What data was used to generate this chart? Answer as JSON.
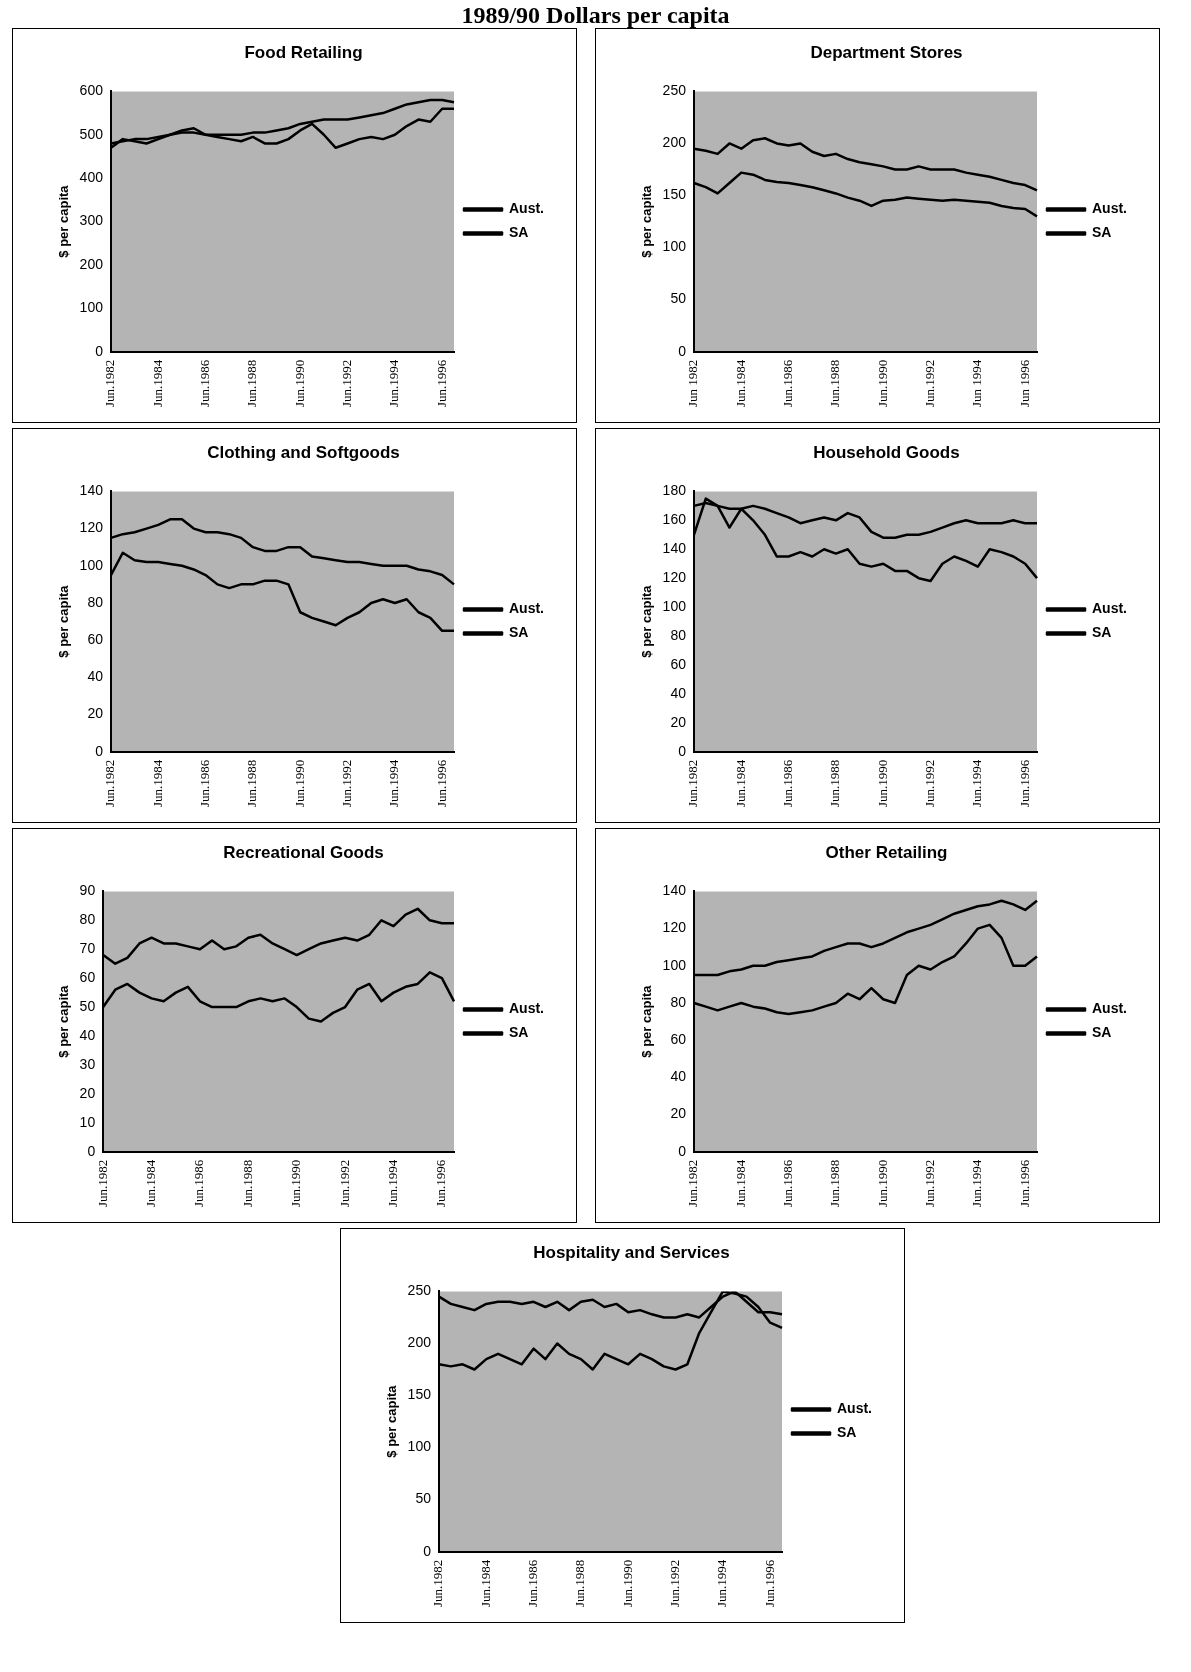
{
  "chart_data": [
    {
      "type": "other",
      "title": "1989/90 Dollars per capita"
    },
    {
      "type": "line",
      "title": "Food Retailing",
      "ylabel": "$ per capita",
      "legend": "right",
      "ylim": [
        0,
        600
      ],
      "yticks": [
        0,
        100,
        200,
        300,
        400,
        500,
        600
      ],
      "categories": [
        "Jun.1982",
        null,
        null,
        null,
        "Jun.1984",
        null,
        null,
        null,
        "Jun.1986",
        null,
        null,
        null,
        "Jun.1988",
        null,
        null,
        null,
        "Jun.1990",
        null,
        null,
        null,
        "Jun.1992",
        null,
        null,
        null,
        "Jun.1994",
        null,
        null,
        null,
        "Jun.1996",
        null
      ],
      "series": [
        {
          "name": "Aust.",
          "color": "#000000",
          "values": [
            480,
            485,
            490,
            490,
            495,
            500,
            505,
            505,
            500,
            500,
            500,
            500,
            505,
            505,
            510,
            515,
            525,
            530,
            535,
            535,
            535,
            540,
            545,
            550,
            560,
            570,
            575,
            580,
            580,
            575
          ]
        },
        {
          "name": "SA",
          "color": "#000000",
          "values": [
            470,
            490,
            485,
            480,
            490,
            500,
            510,
            515,
            500,
            495,
            490,
            485,
            495,
            480,
            480,
            490,
            510,
            525,
            500,
            470,
            480,
            490,
            495,
            490,
            500,
            520,
            535,
            530,
            560,
            560
          ]
        }
      ]
    },
    {
      "type": "line",
      "title": "Department Stores",
      "ylabel": "$ per capita",
      "legend": "right",
      "ylim": [
        0,
        250
      ],
      "yticks": [
        0,
        50,
        100,
        150,
        200,
        250
      ],
      "categories": [
        "Jun 1982",
        null,
        null,
        null,
        "Jun.1984",
        null,
        null,
        null,
        "Jun.1986",
        null,
        null,
        null,
        "Jun.1988",
        null,
        null,
        null,
        "Jun.1990",
        null,
        null,
        null,
        "Jun.1992",
        null,
        null,
        null,
        "Jun 1994",
        null,
        null,
        null,
        "Jun 1996",
        null
      ],
      "series": [
        {
          "name": "Aust.",
          "color": "#000000",
          "values": [
            195,
            193,
            190,
            200,
            195,
            203,
            205,
            200,
            198,
            200,
            192,
            188,
            190,
            185,
            182,
            180,
            178,
            175,
            175,
            178,
            175,
            175,
            175,
            172,
            170,
            168,
            165,
            162,
            160,
            155
          ]
        },
        {
          "name": "SA",
          "color": "#000000",
          "values": [
            162,
            158,
            152,
            162,
            172,
            170,
            165,
            163,
            162,
            160,
            158,
            155,
            152,
            148,
            145,
            140,
            145,
            146,
            148,
            147,
            146,
            145,
            146,
            145,
            144,
            143,
            140,
            138,
            137,
            130
          ]
        }
      ]
    },
    {
      "type": "line",
      "title": "Clothing and Softgoods",
      "ylabel": "$ per capita",
      "legend": "right",
      "ylim": [
        0,
        140
      ],
      "yticks": [
        0,
        20,
        40,
        60,
        80,
        100,
        120,
        140
      ],
      "categories": [
        "Jun.1982",
        null,
        null,
        null,
        "Jun.1984",
        null,
        null,
        null,
        "Jun.1986",
        null,
        null,
        null,
        "Jun.1988",
        null,
        null,
        null,
        "Jun.1990",
        null,
        null,
        null,
        "Jun.1992",
        null,
        null,
        null,
        "Jun.1994",
        null,
        null,
        null,
        "Jun.1996",
        null
      ],
      "series": [
        {
          "name": "Aust.",
          "color": "#000000",
          "values": [
            115,
            117,
            118,
            120,
            122,
            125,
            125,
            120,
            118,
            118,
            117,
            115,
            110,
            108,
            108,
            110,
            110,
            105,
            104,
            103,
            102,
            102,
            101,
            100,
            100,
            100,
            98,
            97,
            95,
            90
          ]
        },
        {
          "name": "SA",
          "color": "#000000",
          "values": [
            95,
            107,
            103,
            102,
            102,
            101,
            100,
            98,
            95,
            90,
            88,
            90,
            90,
            92,
            92,
            90,
            75,
            72,
            70,
            68,
            72,
            75,
            80,
            82,
            80,
            82,
            75,
            72,
            65,
            65
          ]
        }
      ]
    },
    {
      "type": "line",
      "title": "Household Goods",
      "ylabel": "$ per capita",
      "legend": "right",
      "ylim": [
        0,
        180
      ],
      "yticks": [
        0,
        20,
        40,
        60,
        80,
        100,
        120,
        140,
        160,
        180
      ],
      "categories": [
        "Jun.1982",
        null,
        null,
        null,
        "Jun.1984",
        null,
        null,
        null,
        "Jun.1986",
        null,
        null,
        null,
        "Jun.1988",
        null,
        null,
        null,
        "Jun.1990",
        null,
        null,
        null,
        "Jun.1992",
        null,
        null,
        null,
        "Jun.1994",
        null,
        null,
        null,
        "Jun.1996",
        null
      ],
      "series": [
        {
          "name": "Aust.",
          "color": "#000000",
          "values": [
            170,
            172,
            170,
            168,
            168,
            170,
            168,
            165,
            162,
            158,
            160,
            162,
            160,
            165,
            162,
            152,
            148,
            148,
            150,
            150,
            152,
            155,
            158,
            160,
            158,
            158,
            158,
            160,
            158,
            158
          ]
        },
        {
          "name": "SA",
          "color": "#000000",
          "values": [
            150,
            175,
            170,
            155,
            168,
            160,
            150,
            135,
            135,
            138,
            135,
            140,
            137,
            140,
            130,
            128,
            130,
            125,
            125,
            120,
            118,
            130,
            135,
            132,
            128,
            140,
            138,
            135,
            130,
            120
          ]
        }
      ]
    },
    {
      "type": "line",
      "title": "Recreational Goods",
      "ylabel": "$ per capita",
      "legend": "right",
      "ylim": [
        0,
        90
      ],
      "yticks": [
        0,
        10,
        20,
        30,
        40,
        50,
        60,
        70,
        80,
        90
      ],
      "categories": [
        "Jun.1982",
        null,
        null,
        null,
        "Jun.1984",
        null,
        null,
        null,
        "Jun.1986",
        null,
        null,
        null,
        "Jun.1988",
        null,
        null,
        null,
        "Jun.1990",
        null,
        null,
        null,
        "Jun.1992",
        null,
        null,
        null,
        "Jun.1994",
        null,
        null,
        null,
        "Jun.1996",
        null
      ],
      "series": [
        {
          "name": "Aust.",
          "color": "#000000",
          "values": [
            68,
            65,
            67,
            72,
            74,
            72,
            72,
            71,
            70,
            73,
            70,
            71,
            74,
            75,
            72,
            70,
            68,
            70,
            72,
            73,
            74,
            73,
            75,
            80,
            78,
            82,
            84,
            80,
            79,
            79
          ]
        },
        {
          "name": "SA",
          "color": "#000000",
          "values": [
            50,
            56,
            58,
            55,
            53,
            52,
            55,
            57,
            52,
            50,
            50,
            50,
            52,
            53,
            52,
            53,
            50,
            46,
            45,
            48,
            50,
            56,
            58,
            52,
            55,
            57,
            58,
            62,
            60,
            52
          ]
        }
      ]
    },
    {
      "type": "line",
      "title": "Other Retailing",
      "ylabel": "$ per capita",
      "legend": "right",
      "ylim": [
        0,
        140
      ],
      "yticks": [
        0,
        20,
        40,
        60,
        80,
        100,
        120,
        140
      ],
      "categories": [
        "Jun.1982",
        null,
        null,
        null,
        "Jun.1984",
        null,
        null,
        null,
        "Jun.1986",
        null,
        null,
        null,
        "Jun.1988",
        null,
        null,
        null,
        "Jun.1990",
        null,
        null,
        null,
        "Jun.1992",
        null,
        null,
        null,
        "Jun.1994",
        null,
        null,
        null,
        "Jun.1996",
        null
      ],
      "series": [
        {
          "name": "Aust.",
          "color": "#000000",
          "values": [
            95,
            95,
            95,
            97,
            98,
            100,
            100,
            102,
            103,
            104,
            105,
            108,
            110,
            112,
            112,
            110,
            112,
            115,
            118,
            120,
            122,
            125,
            128,
            130,
            132,
            133,
            135,
            133,
            130,
            135
          ]
        },
        {
          "name": "SA",
          "color": "#000000",
          "values": [
            80,
            78,
            76,
            78,
            80,
            78,
            77,
            75,
            74,
            75,
            76,
            78,
            80,
            85,
            82,
            88,
            82,
            80,
            95,
            100,
            98,
            102,
            105,
            112,
            120,
            122,
            115,
            100,
            100,
            105
          ]
        }
      ]
    },
    {
      "type": "line",
      "title": "Hospitality and Services",
      "ylabel": "$ per capita",
      "legend": "right",
      "ylim": [
        0,
        250
      ],
      "yticks": [
        0,
        50,
        100,
        150,
        200,
        250
      ],
      "categories": [
        "Jun.1982",
        null,
        null,
        null,
        "Jun.1984",
        null,
        null,
        null,
        "Jun.1986",
        null,
        null,
        null,
        "Jun.1988",
        null,
        null,
        null,
        "Jun.1990",
        null,
        null,
        null,
        "Jun.1992",
        null,
        null,
        null,
        "Jun.1994",
        null,
        null,
        null,
        "Jun.1996",
        null
      ],
      "series": [
        {
          "name": "Aust.",
          "color": "#000000",
          "values": [
            245,
            238,
            235,
            232,
            238,
            240,
            240,
            238,
            240,
            235,
            240,
            232,
            240,
            242,
            235,
            238,
            230,
            232,
            228,
            225,
            225,
            228,
            225,
            235,
            245,
            250,
            240,
            230,
            230,
            228
          ]
        },
        {
          "name": "SA",
          "color": "#000000",
          "values": [
            180,
            178,
            180,
            175,
            185,
            190,
            185,
            180,
            195,
            185,
            200,
            190,
            185,
            175,
            190,
            185,
            180,
            190,
            185,
            178,
            175,
            180,
            210,
            230,
            250,
            248,
            245,
            235,
            220,
            215
          ]
        }
      ]
    }
  ]
}
